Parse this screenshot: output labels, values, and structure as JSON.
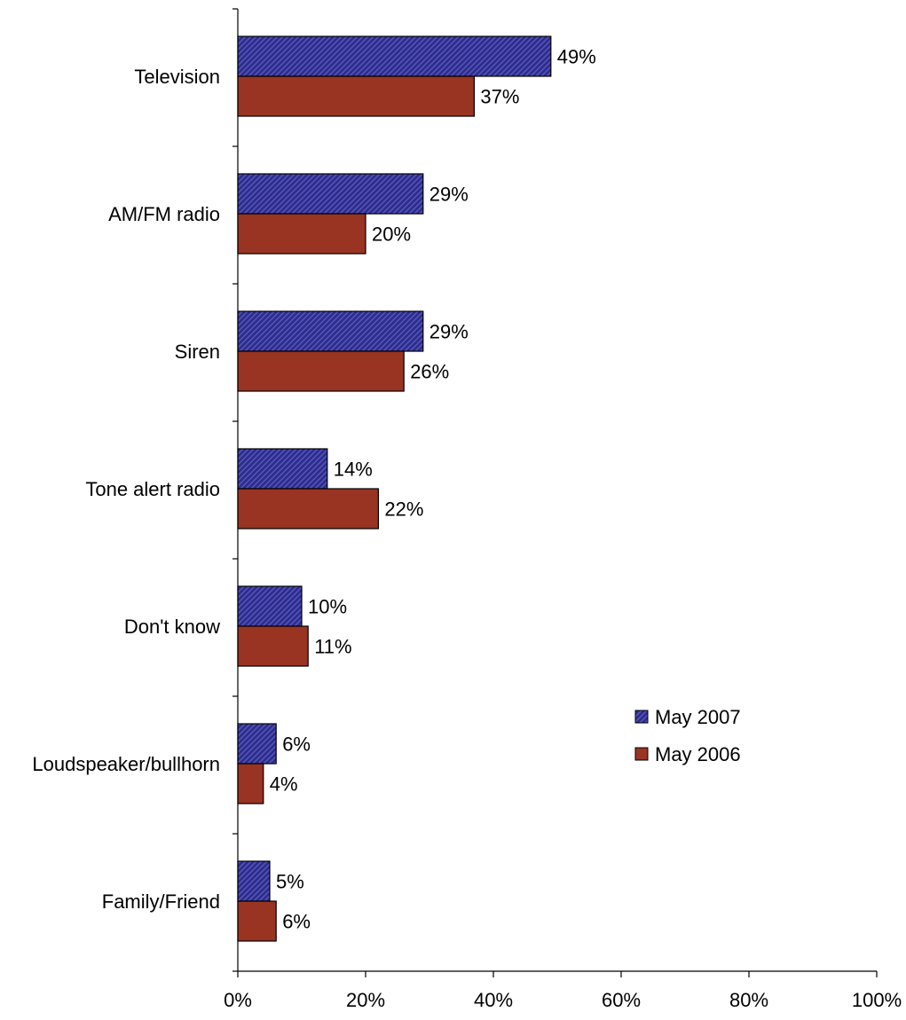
{
  "chart_data": {
    "type": "bar",
    "orientation": "horizontal",
    "categories": [
      "Television",
      "AM/FM radio",
      "Siren",
      "Tone alert radio",
      "Don't know",
      "Loudspeaker/bullhorn",
      "Family/Friend"
    ],
    "series": [
      {
        "name": "May 2007",
        "values": [
          49,
          29,
          29,
          14,
          10,
          6,
          5
        ],
        "labels": [
          "49%",
          "29%",
          "29%",
          "14%",
          "10%",
          "6%",
          "5%"
        ],
        "color": "#2E2E8A",
        "pattern": "diagonal-hatch"
      },
      {
        "name": "May 2006",
        "values": [
          37,
          20,
          26,
          22,
          11,
          4,
          6
        ],
        "labels": [
          "37%",
          "20%",
          "26%",
          "22%",
          "11%",
          "4%",
          "6%"
        ],
        "color": "#993322",
        "pattern": "solid"
      }
    ],
    "x_ticks": [
      "0%",
      "20%",
      "40%",
      "60%",
      "80%",
      "100%"
    ],
    "x_tick_values": [
      0,
      20,
      40,
      60,
      80,
      100
    ],
    "xlim": [
      0,
      100
    ],
    "grid": false,
    "legend_position": "right-middle"
  }
}
